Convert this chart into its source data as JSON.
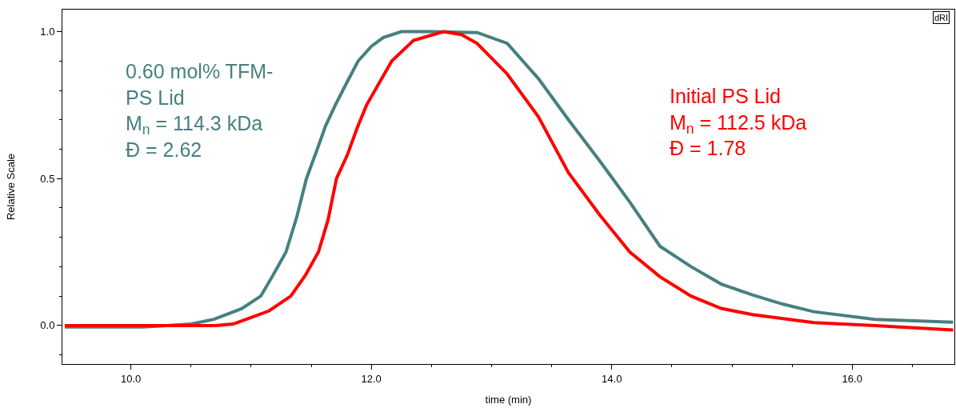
{
  "chart_data": {
    "type": "line",
    "xlabel": "time (min)",
    "ylabel": "Relative Scale",
    "xlim": [
      9.43,
      16.85
    ],
    "ylim": [
      -0.131,
      1.075
    ],
    "xticks": [
      {
        "value": 10,
        "label": "10.0"
      },
      {
        "value": 10.5,
        "label": null
      },
      {
        "value": 11,
        "label": null
      },
      {
        "value": 11.5,
        "label": null
      },
      {
        "value": 12,
        "label": "12.0"
      },
      {
        "value": 12.5,
        "label": null
      },
      {
        "value": 13,
        "label": null
      },
      {
        "value": 13.5,
        "label": null
      },
      {
        "value": 14,
        "label": "14.0"
      },
      {
        "value": 14.5,
        "label": null
      },
      {
        "value": 15,
        "label": null
      },
      {
        "value": 15.5,
        "label": null
      },
      {
        "value": 16,
        "label": "16.0"
      },
      {
        "value": 16.5,
        "label": null
      }
    ],
    "yticks": [
      {
        "value": -0.1,
        "label": null
      },
      {
        "value": 0,
        "label": "0.0"
      },
      {
        "value": 0.1,
        "label": null
      },
      {
        "value": 0.2,
        "label": null
      },
      {
        "value": 0.3,
        "label": null
      },
      {
        "value": 0.4,
        "label": null
      },
      {
        "value": 0.5,
        "label": "0.5"
      },
      {
        "value": 0.6,
        "label": null
      },
      {
        "value": 0.7,
        "label": null
      },
      {
        "value": 0.8,
        "label": null
      },
      {
        "value": 0.9,
        "label": null
      },
      {
        "value": 1.0,
        "label": "1.0"
      }
    ],
    "marker": "none",
    "line_style": "solid",
    "series": [
      {
        "color": "#468080",
        "x": [
          9.45,
          9.8,
          10.1,
          10.3,
          10.5,
          10.69,
          10.92,
          11.08,
          11.18,
          11.29,
          11.38,
          11.46,
          11.55,
          11.62,
          11.7,
          11.8,
          11.89,
          12.0,
          12.1,
          12.25,
          12.5,
          12.88,
          13.13,
          13.39,
          13.64,
          13.9,
          14.15,
          14.4,
          14.66,
          14.91,
          15.17,
          15.42,
          15.68,
          16.19,
          16.84
        ],
        "values": [
          -0.005,
          -0.005,
          -0.005,
          0.0,
          0.005,
          0.021,
          0.057,
          0.1,
          0.17,
          0.25,
          0.37,
          0.5,
          0.6,
          0.68,
          0.75,
          0.83,
          0.9,
          0.95,
          0.98,
          1.0,
          1.0,
          0.997,
          0.96,
          0.84,
          0.7,
          0.56,
          0.42,
          0.27,
          0.2,
          0.141,
          0.104,
          0.073,
          0.047,
          0.021,
          0.011
        ]
      },
      {
        "color": "#ff0000",
        "x": [
          9.45,
          9.8,
          10.1,
          10.4,
          10.7,
          10.85,
          10.95,
          11.15,
          11.33,
          11.45,
          11.56,
          11.64,
          11.71,
          11.8,
          11.88,
          11.96,
          12.17,
          12.35,
          12.6,
          12.75,
          12.88,
          13.13,
          13.39,
          13.64,
          13.9,
          14.15,
          14.4,
          14.66,
          14.91,
          15.17,
          15.68,
          16.19,
          16.84
        ],
        "values": [
          0.0,
          0.0,
          0.0,
          0.0,
          0.0,
          0.005,
          0.02,
          0.05,
          0.1,
          0.17,
          0.25,
          0.36,
          0.5,
          0.58,
          0.67,
          0.75,
          0.9,
          0.97,
          1.0,
          0.99,
          0.96,
          0.856,
          0.71,
          0.52,
          0.376,
          0.25,
          0.166,
          0.1,
          0.058,
          0.037,
          0.01,
          0.0,
          -0.015
        ]
      }
    ],
    "annotations": [
      "0.60 mol% TFM-\nPS Lid\nM$_{n}$ = 114.3 kDa\nĐ = 2.62",
      "Initial PS Lid\nM$_{n}$ = 112.5 kDa\nĐ = 1.78",
      "dRI"
    ]
  }
}
